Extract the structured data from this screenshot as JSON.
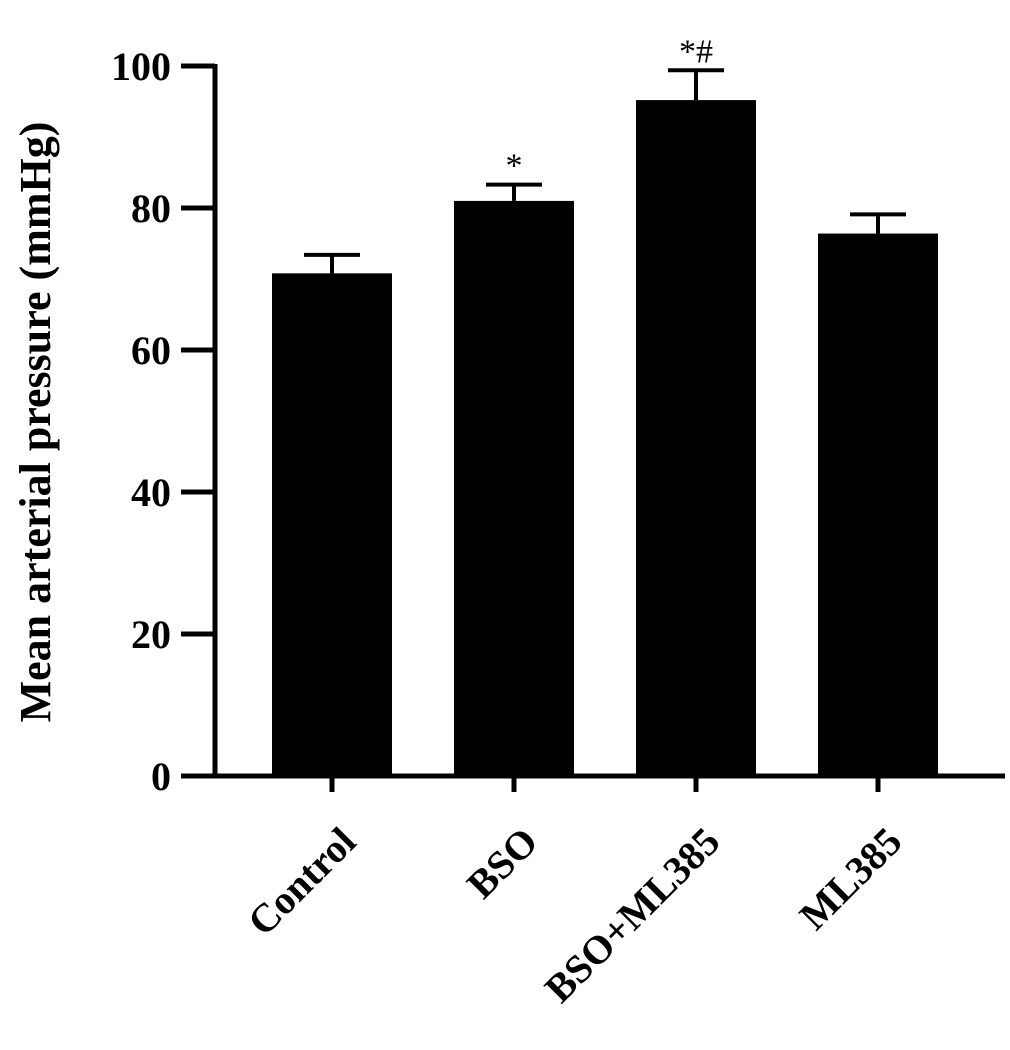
{
  "chart_data": {
    "type": "bar",
    "title": "",
    "xlabel": "",
    "ylabel": "Mean arterial pressure (mmHg)",
    "ylim": [
      0,
      100
    ],
    "yticks": [
      0,
      20,
      40,
      60,
      80,
      100
    ],
    "grid": false,
    "bar_color": "#000000",
    "categories": [
      "Control",
      "BSO",
      "BSO+ML385",
      "ML385"
    ],
    "values": [
      70.8,
      81.0,
      95.2,
      76.4
    ],
    "errors": [
      2.6,
      2.3,
      4.2,
      2.7
    ],
    "annotations": [
      "",
      "*",
      "*#",
      ""
    ]
  }
}
